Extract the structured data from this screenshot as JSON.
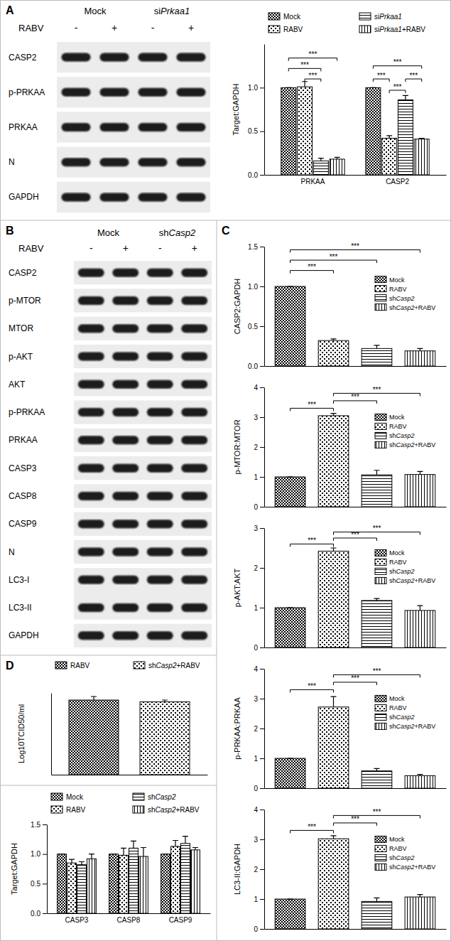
{
  "panel_labels": [
    "A",
    "B",
    "C",
    "D"
  ],
  "blots": [
    {
      "groups": [
        "Mock",
        "siPrkaa1"
      ],
      "condition": "RABV",
      "signs": [
        "-",
        "+",
        "-",
        "+"
      ],
      "rows": [
        [
          "CASP2"
        ],
        [
          "p-PRKAA"
        ],
        [
          "PRKAA"
        ],
        [
          "N"
        ],
        [
          "GAPDH"
        ]
      ]
    },
    {
      "groups": [
        "Mock",
        "shCasp2"
      ],
      "condition": "RABV",
      "signs": [
        "-",
        "+",
        "-",
        "+"
      ],
      "rows": [
        [
          "CASP2"
        ],
        [
          "p-MTOR"
        ],
        [
          "MTOR"
        ],
        [
          "p-AKT"
        ],
        [
          "AKT"
        ],
        [
          "p-PRKAA"
        ],
        [
          "PRKAA"
        ],
        [
          "CASP3"
        ],
        [
          "CASP8"
        ],
        [
          "CASP9"
        ],
        [
          "N"
        ],
        [
          "LC3-I",
          "LC3-II"
        ],
        [
          "GAPDH"
        ]
      ]
    }
  ],
  "chart_data": [
    {
      "type": "bar",
      "ylabel": "Target:GAPDH",
      "categories": [
        "PRKAA",
        "CASP2"
      ],
      "series": [
        {
          "name": "Mock",
          "color": "#000000",
          "values": [
            1.0,
            1.0
          ],
          "errors": [
            0,
            0
          ]
        },
        {
          "name": "RABV",
          "color": "#000000",
          "values": [
            1.01,
            0.42
          ],
          "errors": [
            0.06,
            0.03
          ]
        },
        {
          "name": "siPrkaa1",
          "color": "#000000",
          "values": [
            0.16,
            0.86
          ],
          "errors": [
            0.03,
            0.05
          ]
        },
        {
          "name": "siPrkaa1+RABV",
          "color": "#000000",
          "values": [
            0.18,
            0.41
          ],
          "errors": [
            0.02,
            0.01
          ]
        }
      ],
      "ylim": [
        0,
        1.5
      ],
      "yticks": [
        {
          "value": 0,
          "label": "0.0"
        },
        0.5,
        {
          "value": 1,
          "label": "1.0"
        }
      ],
      "legend": "top",
      "annotations": [
        {
          "text": "***",
          "category": 0,
          "from": 1,
          "to": 2,
          "level": 1.1
        },
        {
          "text": "***",
          "category": 0,
          "from": 0,
          "to": 2,
          "level": 1.22
        },
        {
          "text": "***",
          "category": 0,
          "from": 0,
          "to": 3,
          "level": 1.34
        },
        {
          "text": "***",
          "category": 1,
          "from": 1,
          "to": 2,
          "level": 0.97
        },
        {
          "text": "***",
          "category": 1,
          "from": 0,
          "to": 1,
          "level": 1.1
        },
        {
          "text": "***",
          "category": 1,
          "from": 2,
          "to": 3,
          "level": 1.1
        },
        {
          "text": "***",
          "category": 1,
          "from": 0,
          "to": 3,
          "level": 1.25
        }
      ]
    },
    {
      "type": "bar",
      "ylabel": "CASP2:GAPDH",
      "categories": [
        "Mock",
        "RABV",
        "shCasp2",
        "shCasp2+RABV"
      ],
      "colors": [
        "#000000",
        "#000000",
        "#000000",
        "#000000"
      ],
      "values": [
        1.0,
        0.32,
        0.22,
        0.19
      ],
      "errors": [
        0,
        0.02,
        0.04,
        0.03
      ],
      "ylim": [
        0,
        1.5
      ],
      "yticks": [
        {
          "value": 0,
          "label": "0.0"
        },
        0.5,
        {
          "value": 1,
          "label": "1.0"
        },
        1.5
      ],
      "tick_labels": "y",
      "legend": "upper right",
      "annotations": [
        {
          "text": "***",
          "from": 0,
          "to": 1,
          "level": 1.2
        },
        {
          "text": "***",
          "from": 0,
          "to": 2,
          "level": 1.33
        },
        {
          "text": "***",
          "from": 0,
          "to": 3,
          "level": 1.46
        }
      ]
    },
    {
      "type": "bar",
      "ylabel": "p-MTOR:MTOR",
      "categories": [
        "Mock",
        "RABV",
        "shCasp2",
        "shCasp2+RABV"
      ],
      "colors": [
        "#000000",
        "#000000",
        "#000000",
        "#000000"
      ],
      "values": [
        1.0,
        3.05,
        1.07,
        1.08
      ],
      "errors": [
        0,
        0.08,
        0.15,
        0.1
      ],
      "ylim": [
        0,
        4
      ],
      "yticks": [
        0,
        1,
        2,
        3,
        4
      ],
      "tick_labels": "y",
      "legend": "upper right",
      "annotations": [
        {
          "text": "***",
          "from": 0,
          "to": 1,
          "level": 3.3
        },
        {
          "text": "***",
          "from": 1,
          "to": 2,
          "level": 3.55
        },
        {
          "text": "***",
          "from": 1,
          "to": 3,
          "level": 3.8
        }
      ]
    },
    {
      "type": "bar",
      "ylabel": "p-AKT:AKT",
      "categories": [
        "Mock",
        "RABV",
        "shCasp2",
        "shCasp2+RABV"
      ],
      "colors": [
        "#000000",
        "#000000",
        "#000000",
        "#000000"
      ],
      "values": [
        1.0,
        2.42,
        1.18,
        0.93
      ],
      "errors": [
        0,
        0.08,
        0.05,
        0.12
      ],
      "ylim": [
        0,
        3
      ],
      "yticks": [
        0,
        1,
        2,
        3
      ],
      "tick_labels": "y",
      "legend": "upper right",
      "annotations": [
        {
          "text": "***",
          "from": 0,
          "to": 1,
          "level": 2.6
        },
        {
          "text": "***",
          "from": 1,
          "to": 2,
          "level": 2.75
        },
        {
          "text": "***",
          "from": 1,
          "to": 3,
          "level": 2.9
        }
      ]
    },
    {
      "type": "bar",
      "ylabel": "p-PRKAA:PRKAA",
      "categories": [
        "Mock",
        "RABV",
        "shCasp2",
        "shCasp2+RABV"
      ],
      "colors": [
        "#000000",
        "#000000",
        "#000000",
        "#000000"
      ],
      "values": [
        1.0,
        2.72,
        0.58,
        0.42
      ],
      "errors": [
        0,
        0.35,
        0.08,
        0.04
      ],
      "ylim": [
        0,
        4
      ],
      "yticks": [
        0,
        1,
        2,
        3,
        4
      ],
      "tick_labels": "y",
      "legend": "upper right",
      "annotations": [
        {
          "text": "***",
          "from": 0,
          "to": 1,
          "level": 3.3
        },
        {
          "text": "***",
          "from": 1,
          "to": 2,
          "level": 3.55
        },
        {
          "text": "***",
          "from": 1,
          "to": 3,
          "level": 3.8
        }
      ]
    },
    {
      "type": "bar",
      "ylabel": "LC3-II:GAPDH",
      "categories": [
        "Mock",
        "RABV",
        "shCasp2",
        "shCasp2+RABV"
      ],
      "colors": [
        "#000000",
        "#000000",
        "#000000",
        "#000000"
      ],
      "values": [
        1.0,
        3.02,
        0.92,
        1.07
      ],
      "errors": [
        0,
        0.1,
        0.12,
        0.08
      ],
      "ylim": [
        0,
        4
      ],
      "yticks": [
        0,
        1,
        2,
        3,
        4
      ],
      "tick_labels": "y",
      "legend": "upper right",
      "annotations": [
        {
          "text": "***",
          "from": 0,
          "to": 1,
          "level": 3.3
        },
        {
          "text": "***",
          "from": 1,
          "to": 2,
          "level": 3.55
        },
        {
          "text": "***",
          "from": 1,
          "to": 3,
          "level": 3.8
        }
      ]
    },
    {
      "type": "bar",
      "ylabel": "Log10TCID50/ml",
      "categories": [
        "RABV",
        "shCasp2+RABV"
      ],
      "colors": [
        "#000000",
        "#000000"
      ],
      "values": [
        4.2,
        4.1
      ],
      "errors": [
        0.2,
        0.1
      ],
      "ylim": [
        0,
        4.6
      ],
      "tick_labels": false,
      "legend": "top"
    },
    {
      "type": "bar",
      "ylabel": "Target:GAPDH",
      "categories": [
        "CASP3",
        "CASP8",
        "CASP9"
      ],
      "series": [
        {
          "name": "Mock",
          "color": "#000000",
          "values": [
            1.0,
            1.0,
            1.0
          ],
          "errors": [
            0,
            0,
            0
          ]
        },
        {
          "name": "RABV",
          "color": "#000000",
          "values": [
            0.85,
            0.98,
            1.13
          ],
          "errors": [
            0.06,
            0.12,
            0.1
          ]
        },
        {
          "name": "shCasp2",
          "color": "#000000",
          "values": [
            0.82,
            1.1,
            1.18
          ],
          "errors": [
            0.05,
            0.12,
            0.12
          ]
        },
        {
          "name": "shCasp2+RABV",
          "color": "#000000",
          "values": [
            0.92,
            0.96,
            1.07
          ],
          "errors": [
            0.08,
            0.15,
            0.04
          ]
        }
      ],
      "ylim": [
        0,
        1.5
      ],
      "yticks": [
        {
          "value": 0,
          "label": "0.0"
        },
        0.5,
        {
          "value": 1,
          "label": "1.0"
        },
        1.5
      ],
      "legend": "top"
    }
  ]
}
